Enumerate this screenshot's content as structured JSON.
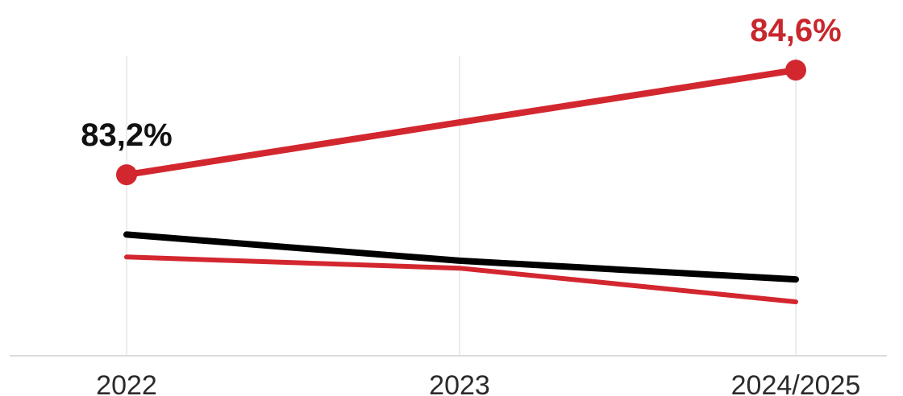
{
  "chart_data": {
    "type": "line",
    "categories": [
      "2022",
      "2023",
      "2024/2025"
    ],
    "ylim": [
      80.8,
      85.0
    ],
    "grid": {
      "vertical": true,
      "horizontal": false
    },
    "series": [
      {
        "color": "#d3272f",
        "width": "thick",
        "values": [
          83.2,
          83.9,
          84.6
        ],
        "markers": [
          true,
          false,
          true
        ]
      },
      {
        "color": "#000000",
        "width": "thick",
        "values": [
          82.4,
          82.05,
          81.8
        ],
        "markers": [
          false,
          false,
          false
        ]
      },
      {
        "color": "#d3272f",
        "width": "medium",
        "values": [
          82.1,
          81.95,
          81.5
        ],
        "markers": [
          false,
          false,
          false
        ]
      }
    ],
    "data_labels": [
      {
        "series": 0,
        "point": 0,
        "text": "83,2%",
        "color": "#111111"
      },
      {
        "series": 0,
        "point": 2,
        "text": "84,6%",
        "color": "#c8272d"
      }
    ]
  }
}
